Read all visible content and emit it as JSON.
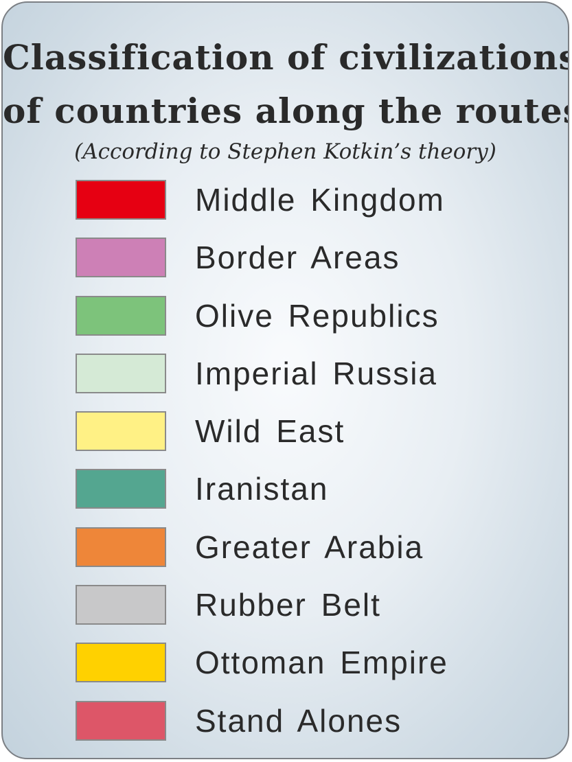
{
  "title": {
    "line1": "Classification of civilizations",
    "line2": "of countries along the routes",
    "subtitle": "(According to Stephen Kotkin’s theory)"
  },
  "legend": [
    {
      "label": "Middle  Kingdom",
      "color": "#e60012"
    },
    {
      "label": "Border  Areas",
      "color": "#cd80b6"
    },
    {
      "label": "Olive  Republics",
      "color": "#7dc37b"
    },
    {
      "label": "Imperial Russia",
      "color": "#d5ead6"
    },
    {
      "label": "Wild East",
      "color": "#fff185"
    },
    {
      "label": "Iranistan",
      "color": "#54a690"
    },
    {
      "label": "Greater  Arabia",
      "color": "#ee8639"
    },
    {
      "label": "Rubber  Belt",
      "color": "#c8c8c9"
    },
    {
      "label": "Ottoman  Empire",
      "color": "#ffd100"
    },
    {
      "label": "Stand  Alones",
      "color": "#dd5668"
    }
  ]
}
